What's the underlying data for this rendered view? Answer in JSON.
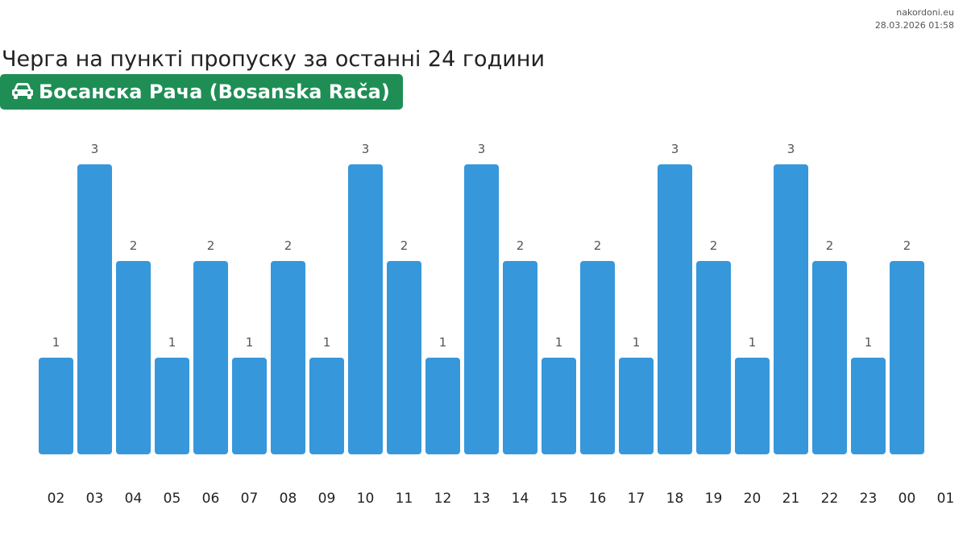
{
  "site": {
    "name": "nakordoni.eu",
    "timestamp": "28.03.2026 01:58"
  },
  "page": {
    "title": "Черга на пункті пропуску за останні 24 години"
  },
  "badge": {
    "icon": "car-icon",
    "label": "Босанска Рача (Bosanska Rača)",
    "color": "#1e8e55"
  },
  "chart_data": {
    "type": "bar",
    "categories": [
      "02",
      "03",
      "04",
      "05",
      "06",
      "07",
      "08",
      "09",
      "10",
      "11",
      "12",
      "13",
      "14",
      "15",
      "16",
      "17",
      "18",
      "19",
      "20",
      "21",
      "22",
      "23",
      "00"
    ],
    "values": [
      1,
      3,
      2,
      1,
      2,
      1,
      2,
      1,
      3,
      2,
      1,
      3,
      2,
      1,
      2,
      1,
      3,
      2,
      1,
      3,
      2,
      1,
      2
    ],
    "x_ticks": [
      "02",
      "03",
      "04",
      "05",
      "06",
      "07",
      "08",
      "09",
      "10",
      "11",
      "12",
      "13",
      "14",
      "15",
      "16",
      "17",
      "18",
      "19",
      "20",
      "21",
      "22",
      "23",
      "00",
      "01"
    ],
    "title": "",
    "xlabel": "",
    "ylabel": "",
    "ylim": [
      0,
      3
    ],
    "grid": false,
    "bar_color": "#3797db",
    "data_labels": true
  }
}
